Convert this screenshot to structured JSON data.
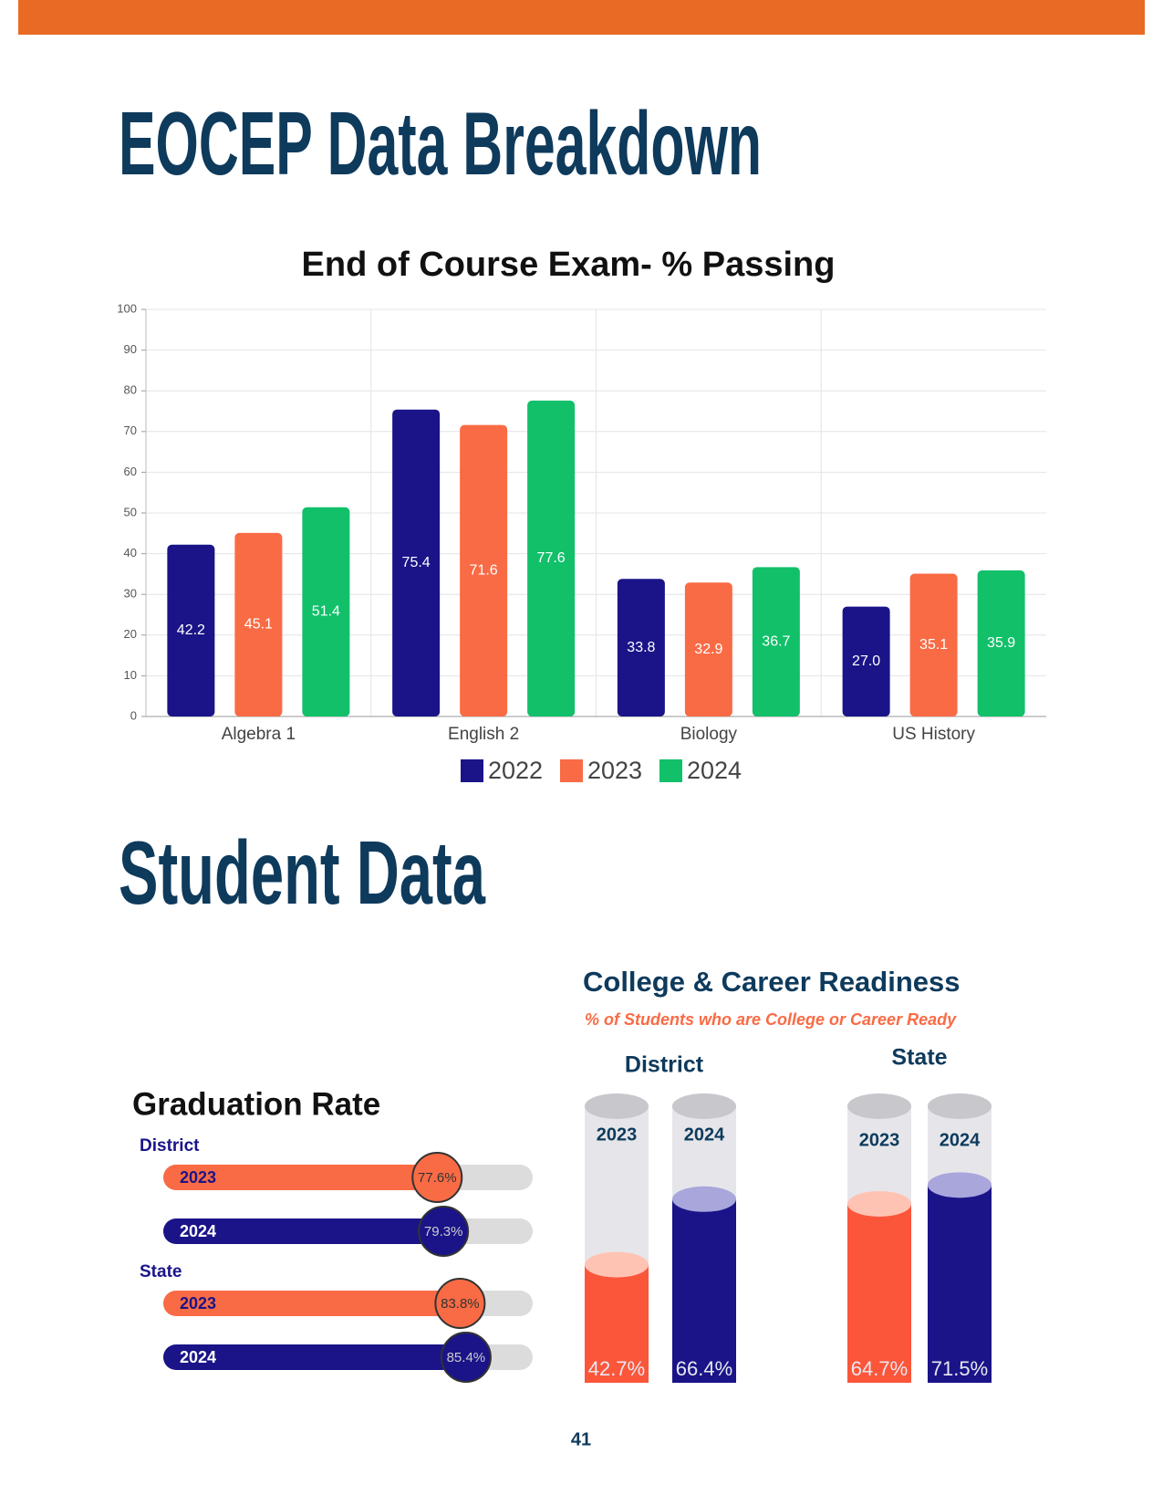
{
  "page_title": "EOCEP Data Breakdown",
  "section_title": "Student Data",
  "page_number": "41",
  "chart_data": [
    {
      "type": "bar",
      "title": "End of Course Exam- % Passing",
      "categories": [
        "Algebra 1",
        "English 2",
        "Biology",
        "US History"
      ],
      "series": [
        {
          "name": "2022",
          "color": "#1a1488",
          "values": [
            42.2,
            75.4,
            33.8,
            27.0
          ],
          "value_labels": [
            "42.2",
            "75.4",
            "33.8",
            "27.0"
          ]
        },
        {
          "name": "2023",
          "color": "#f96b45",
          "values": [
            45.1,
            71.6,
            32.9,
            35.1
          ]
        },
        {
          "name": "2024",
          "color": "#12c06a",
          "values": [
            51.4,
            77.6,
            36.7,
            35.9
          ]
        }
      ],
      "ylim": [
        0,
        100
      ],
      "yticks": [
        0,
        10,
        20,
        30,
        40,
        50,
        60,
        70,
        80,
        90,
        100
      ],
      "grid": true
    },
    {
      "type": "progress",
      "title": "Graduation Rate",
      "groups": [
        "District",
        "State"
      ],
      "series": [
        {
          "name": "2023",
          "color": "#f96b45",
          "values": [
            77.6,
            83.8
          ],
          "value_labels": [
            "77.6%",
            "83.8%"
          ]
        },
        {
          "name": "2024",
          "color": "#1a1488",
          "values": [
            79.3,
            85.4
          ],
          "value_labels": [
            "79.3%",
            "85.4%"
          ]
        }
      ],
      "xlim": [
        0,
        100
      ]
    },
    {
      "type": "cylinder",
      "title": "College & Career Readiness",
      "subtitle": "% of Students who are College or Career Ready",
      "groups": [
        "District",
        "State"
      ],
      "series": [
        {
          "name": "2023",
          "color": "#fb563a",
          "values": [
            42.7,
            64.7
          ],
          "value_labels": [
            "42.7%",
            "64.7%"
          ]
        },
        {
          "name": "2024",
          "color": "#1a1488",
          "values": [
            66.4,
            71.5
          ],
          "value_labels": [
            "66.4%",
            "71.5%"
          ]
        }
      ],
      "ylim": [
        0,
        100
      ]
    }
  ]
}
